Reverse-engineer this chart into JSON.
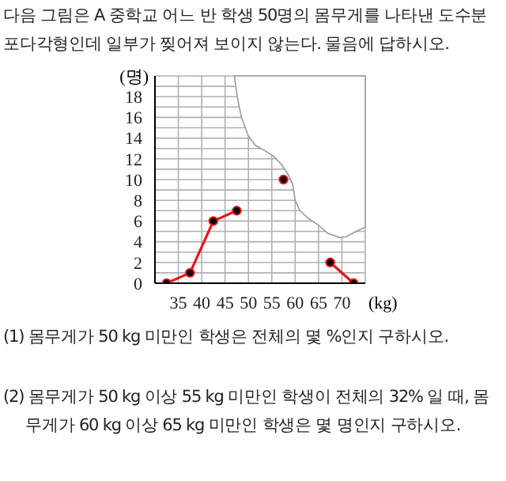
{
  "chart_data": {
    "type": "line",
    "title": "다음 그림은 A 중학교 어느 반 학생 50명의 몸무게를 나타낸 도수분포다각형인데 일부가 찢어져 보이지 않는다. 물음에 답하시오.",
    "xlabel": "(kg)",
    "ylabel": "(명)",
    "x": [
      32.5,
      37.5,
      42.5,
      47.5,
      52.5,
      57.5,
      62.5,
      67.5,
      72.5
    ],
    "values": [
      0,
      1,
      6,
      7,
      null,
      10,
      null,
      2,
      0
    ],
    "color": "#e8141c",
    "marker": "circle",
    "xlim": [
      30,
      75
    ],
    "xticks": [
      35,
      40,
      45,
      50,
      55,
      60,
      65,
      70
    ],
    "ylim": [
      0,
      20
    ],
    "yticks": [
      0,
      {
        "value": 1,
        "label": null
      },
      2,
      {
        "value": 3,
        "label": null
      },
      4,
      {
        "value": 5,
        "label": null
      },
      6,
      {
        "value": 7,
        "label": null
      },
      8,
      {
        "value": 9,
        "label": null
      },
      10,
      {
        "value": 11,
        "label": null
      },
      12,
      {
        "value": 13,
        "label": null
      },
      14,
      {
        "value": 15,
        "label": null
      },
      16,
      {
        "value": 17,
        "label": null
      },
      18,
      {
        "value": 19,
        "label": null
      },
      {
        "value": 20,
        "label": null
      }
    ],
    "grid": true,
    "annotations": [
      "(1) 몸무게가 50 kg 미만인 학생은 전체의 몇 %인지 구하시오.",
      "(2) 몸무게가 50 kg 이상 55 kg 미만인 학생이 전체의 32% 일 때, 몸무게가 60 kg 이상 65 kg 미만인 학생은 몇 명인지 구하시오."
    ]
  }
}
